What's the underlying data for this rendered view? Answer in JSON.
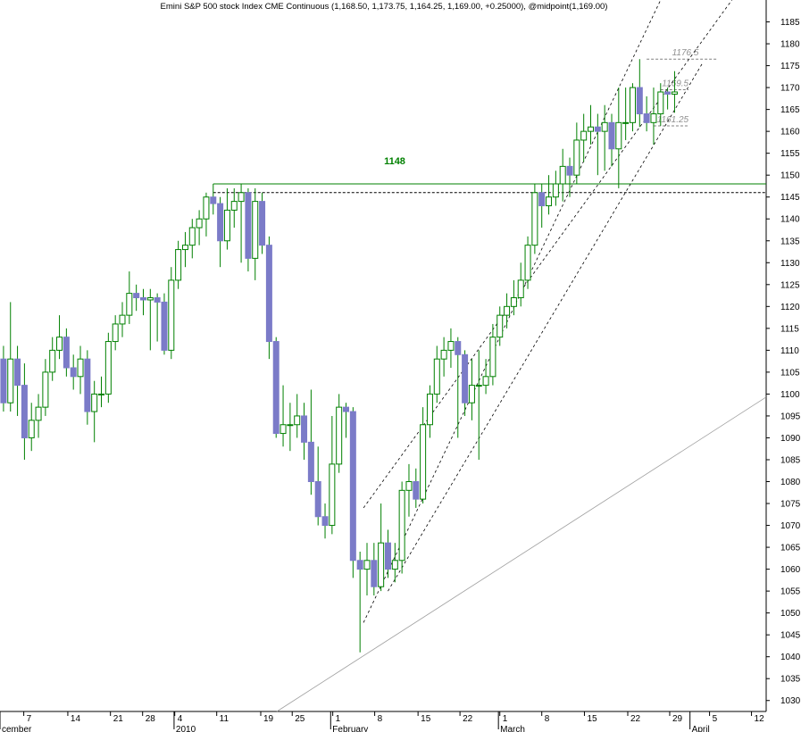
{
  "chart_data": {
    "type": "candlestick",
    "title": "Emini S&P 500 stock Index CME Continuous (1,168.50, 1,173.75, 1,164.25, 1,169.00, +0.25000), @midpoint(1,169.00)",
    "up_color": "#008000",
    "down_color": "#7b7bc8",
    "open": [
      1108,
      1098,
      1108,
      1102,
      1090,
      1094,
      1097,
      1105,
      1110,
      1113,
      1106,
      1104,
      1108,
      1096,
      1100,
      1100,
      1112,
      1116,
      1118,
      1123,
      1122,
      1121.5,
      1122,
      1121,
      1110,
      1126,
      1133,
      1134,
      1138,
      1140,
      1145,
      1143.5,
      1135,
      1142,
      1144,
      1146,
      1131,
      1144,
      1134,
      1112,
      1091,
      1093,
      1093,
      1095,
      1089,
      1080,
      1072,
      1070,
      1084,
      1097,
      1096,
      1062,
      1060,
      1062,
      1056,
      1066,
      1060,
      1062,
      1078,
      1080,
      1076,
      1093,
      1100,
      1108,
      1110,
      1112,
      1109,
      1098,
      1102,
      1102,
      1104,
      1113,
      1118,
      1120,
      1122,
      1126,
      1134,
      1146,
      1143,
      1145,
      1148,
      1152,
      1150,
      1158,
      1160,
      1161,
      1160,
      1162,
      1156,
      1162,
      1162,
      1170,
      1164,
      1162,
      1164,
      1169,
      1168.5
    ],
    "high": [
      1111,
      1121,
      1111,
      1107,
      1098,
      1100,
      1108,
      1113,
      1118,
      1115,
      1109,
      1111,
      1110,
      1103,
      1104,
      1114,
      1118,
      1121,
      1128,
      1125,
      1124,
      1124,
      1123,
      1123,
      1129,
      1135,
      1137,
      1140,
      1142,
      1146,
      1148,
      1145,
      1147,
      1147,
      1148,
      1147,
      1147,
      1146,
      1136,
      1113,
      1102,
      1098,
      1100,
      1098,
      1101,
      1088,
      1075,
      1095,
      1100,
      1098,
      1097,
      1064,
      1066,
      1066,
      1075,
      1069,
      1066,
      1080,
      1084,
      1083,
      1097,
      1102,
      1111,
      1113,
      1115,
      1113,
      1110,
      1108,
      1110,
      1108,
      1116,
      1120,
      1123,
      1126,
      1130,
      1136,
      1148,
      1148,
      1150,
      1151,
      1156,
      1154,
      1162,
      1164,
      1166,
      1164,
      1166,
      1164,
      1170,
      1170,
      1171,
      1176.5,
      1168,
      1170,
      1171,
      1170,
      1173.75
    ],
    "low": [
      1096,
      1096,
      1095,
      1085,
      1087,
      1090,
      1095,
      1103,
      1108,
      1104,
      1101,
      1100,
      1093,
      1089,
      1097,
      1098,
      1110,
      1113,
      1116,
      1119,
      1118,
      1110,
      1112,
      1109,
      1108,
      1124,
      1129,
      1131,
      1134,
      1136,
      1141,
      1129,
      1133,
      1138,
      1130,
      1128,
      1126,
      1132,
      1108,
      1090,
      1088,
      1087,
      1090,
      1085,
      1077,
      1070,
      1067,
      1068,
      1082,
      1090,
      1058,
      1041,
      1054,
      1054,
      1055,
      1058,
      1057,
      1059,
      1072,
      1074,
      1075,
      1090,
      1098,
      1104,
      1106,
      1090,
      1095,
      1094,
      1085,
      1100,
      1102,
      1111,
      1115,
      1118,
      1120,
      1124,
      1132,
      1138,
      1141,
      1143,
      1144,
      1145,
      1148,
      1153,
      1157,
      1150,
      1151,
      1152,
      1147,
      1158,
      1160,
      1161,
      1160,
      1157,
      1161.25,
      1165,
      1164.25
    ],
    "close": [
      1098,
      1108,
      1102,
      1090,
      1094,
      1097,
      1105,
      1110,
      1113,
      1106,
      1104,
      1108,
      1096,
      1100,
      1100,
      1112,
      1116,
      1118,
      1123,
      1122,
      1121.5,
      1122,
      1121,
      1110,
      1126,
      1133,
      1134,
      1138,
      1140,
      1145,
      1143.5,
      1135,
      1142,
      1144,
      1146,
      1131,
      1144,
      1134,
      1112,
      1091,
      1093,
      1093,
      1095,
      1089,
      1080,
      1072,
      1070,
      1084,
      1097,
      1096,
      1062,
      1060,
      1062,
      1056,
      1066,
      1060,
      1062,
      1078,
      1080,
      1076,
      1093,
      1100,
      1108,
      1110,
      1112,
      1109,
      1098,
      1102,
      1102,
      1104,
      1113,
      1118,
      1120,
      1122,
      1126,
      1134,
      1146,
      1143,
      1145,
      1148,
      1152,
      1150,
      1158,
      1160,
      1161,
      1160,
      1162,
      1156,
      1162,
      1162,
      1170,
      1164,
      1162,
      1164,
      1169,
      1168.5,
      1169
    ],
    "xlim": [
      -0.5,
      109.1
    ],
    "xticks": [
      {
        "value": 2.9,
        "label": "7"
      },
      {
        "value": 9.2,
        "label": "14"
      },
      {
        "value": 15.3,
        "label": "21"
      },
      {
        "value": 19.9,
        "label": "28"
      },
      {
        "value": 24.5,
        "label": "4"
      },
      {
        "value": 30.5,
        "label": "11"
      },
      {
        "value": 36.8,
        "label": "19"
      },
      {
        "value": 41.3,
        "label": "25"
      },
      {
        "value": 47.1,
        "label": "1"
      },
      {
        "value": 53.1,
        "label": "8"
      },
      {
        "value": 59.3,
        "label": "15"
      },
      {
        "value": 65.3,
        "label": "22"
      },
      {
        "value": 71.0,
        "label": "1"
      },
      {
        "value": 77.0,
        "label": "8"
      },
      {
        "value": 83.1,
        "label": "15"
      },
      {
        "value": 89.3,
        "label": "22"
      },
      {
        "value": 95.3,
        "label": "29"
      },
      {
        "value": 101.0,
        "label": "5"
      },
      {
        "value": 107.0,
        "label": "12"
      }
    ],
    "month_labels": [
      {
        "value": -0.5,
        "label": "cember"
      },
      {
        "value": 24.4,
        "label": "2010"
      },
      {
        "value": 46.8,
        "label": "February"
      },
      {
        "value": 70.8,
        "label": "March"
      },
      {
        "value": 98.2,
        "label": "April"
      }
    ],
    "ylim": [
      1027.5,
      1190
    ],
    "yticks": [
      1030,
      1035,
      1040,
      1045,
      1050,
      1055,
      1060,
      1065,
      1070,
      1075,
      1080,
      1085,
      1090,
      1095,
      1100,
      1105,
      1110,
      1115,
      1120,
      1125,
      1130,
      1135,
      1140,
      1145,
      1150,
      1155,
      1160,
      1165,
      1170,
      1175,
      1180,
      1185
    ],
    "trendlines": [
      {
        "x": [
          51.5,
          94
        ],
        "y": [
          1047.8,
          1190
        ],
        "color": "#000000",
        "style": "dashed"
      },
      {
        "x": [
          51.5,
          104.2
        ],
        "y": [
          1074,
          1190
        ],
        "color": "#000000",
        "style": "dashed"
      },
      {
        "x": [
          55,
          100
        ],
        "y": [
          1055,
          1175.6
        ],
        "color": "#000000",
        "style": "dashed"
      },
      {
        "x": [
          39.1,
          109.1
        ],
        "y": [
          1027.5,
          1099.3
        ],
        "color": "#a0a0a0",
        "style": "solid"
      }
    ],
    "levels": [
      {
        "value": 1148,
        "x": [
          30,
          109.1
        ],
        "color": "#008000",
        "style": "solid",
        "labeled": true
      },
      {
        "value": 1146,
        "x": [
          30,
          109.1
        ],
        "color": "#000000",
        "style": "dashed",
        "labeled": false
      },
      {
        "value": 1176.5,
        "x": [
          92,
          102
        ],
        "color": "#808080",
        "style": "dashed",
        "labeled": true
      },
      {
        "value": 1169.5,
        "x": [
          94,
          98
        ],
        "color": "#808080",
        "style": "dashed",
        "labeled": true
      },
      {
        "value": 1161.25,
        "x": [
          93,
          98
        ],
        "color": "#808080",
        "style": "dashed",
        "labeled": true
      }
    ]
  }
}
